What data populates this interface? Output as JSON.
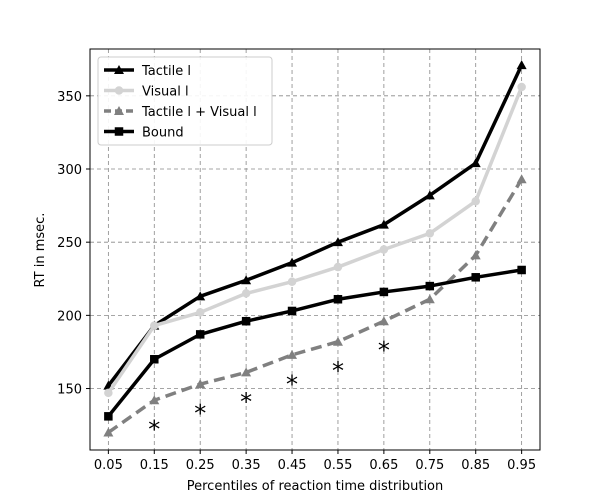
{
  "chart_data": {
    "type": "line",
    "title": "",
    "xlabel": "Percentiles of reaction time distribution",
    "ylabel": "RT in msec.",
    "x": [
      0.05,
      0.15,
      0.25,
      0.35,
      0.45,
      0.55,
      0.65,
      0.75,
      0.85,
      0.95
    ],
    "x_tick_labels": [
      "0.05",
      "0.15",
      "0.25",
      "0.35",
      "0.45",
      "0.55",
      "0.65",
      "0.75",
      "0.85",
      "0.95"
    ],
    "xlim": [
      0.01,
      0.99
    ],
    "ylim": [
      108,
      382
    ],
    "y_ticks": [
      150,
      200,
      250,
      300,
      350
    ],
    "grid": true,
    "legend_position": "upper-left",
    "series": [
      {
        "name": "Tactile l",
        "values": [
          152,
          193,
          213,
          224,
          236,
          250,
          262,
          282,
          304,
          371
        ],
        "color": "#000000",
        "marker": "triangle",
        "dash": "solid"
      },
      {
        "name": "Visual l",
        "values": [
          147,
          193,
          202,
          215,
          223,
          233,
          245,
          256,
          278,
          356
        ],
        "color": "#d3d3d3",
        "marker": "circle",
        "dash": "solid"
      },
      {
        "name": "Tactile l + Visual l",
        "values": [
          120,
          142,
          153,
          161,
          173,
          182,
          196,
          211,
          241,
          293
        ],
        "color": "#808080",
        "marker": "triangle",
        "dash": "dashed"
      },
      {
        "name": "Bound",
        "values": [
          131,
          170,
          187,
          196,
          203,
          211,
          216,
          220,
          226,
          231
        ],
        "color": "#000000",
        "marker": "square",
        "dash": "solid"
      }
    ],
    "annotations": [
      {
        "text": "*",
        "x": 0.15,
        "y": 126
      },
      {
        "text": "*",
        "x": 0.25,
        "y": 137
      },
      {
        "text": "*",
        "x": 0.35,
        "y": 145
      },
      {
        "text": "*",
        "x": 0.45,
        "y": 157
      },
      {
        "text": "*",
        "x": 0.55,
        "y": 166
      },
      {
        "text": "*",
        "x": 0.65,
        "y": 180
      }
    ]
  }
}
